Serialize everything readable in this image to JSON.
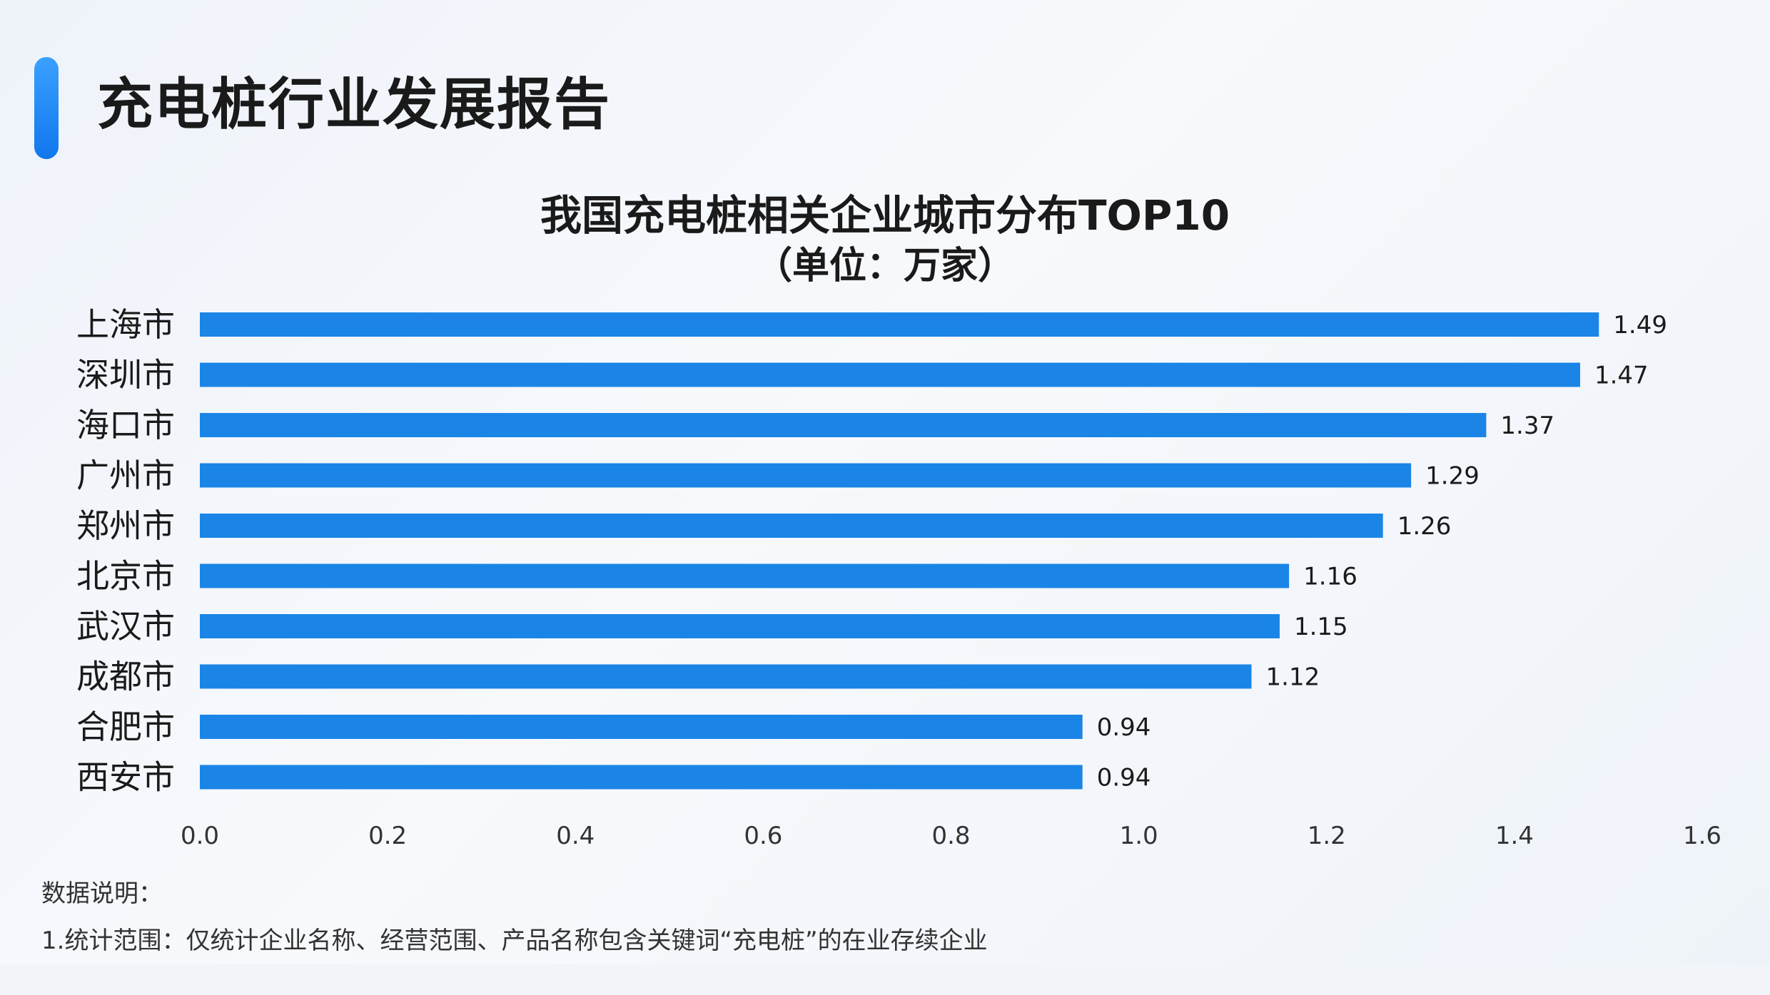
{
  "header": {
    "title": "充电桩行业发展报告"
  },
  "chart_data": {
    "type": "bar",
    "orientation": "horizontal",
    "title": "我国充电桩相关企业城市分布TOP10",
    "subtitle": "（单位：万家）",
    "categories": [
      "上海市",
      "深圳市",
      "海口市",
      "广州市",
      "郑州市",
      "北京市",
      "武汉市",
      "成都市",
      "合肥市",
      "西安市"
    ],
    "values": [
      1.49,
      1.47,
      1.37,
      1.29,
      1.26,
      1.16,
      1.15,
      1.12,
      0.94,
      0.94
    ],
    "data_labels": [
      "1.49",
      "1.47",
      "1.37",
      "1.29",
      "1.26",
      "1.16",
      "1.15",
      "1.12",
      "0.94",
      "0.94"
    ],
    "xlim": [
      0,
      1.6
    ],
    "xticks": [
      "0.0",
      "0.2",
      "0.4",
      "0.6",
      "0.8",
      "1.0",
      "1.2",
      "1.4",
      "1.6"
    ],
    "bar_color": "#1a85e6",
    "grid": false,
    "legend": "none"
  },
  "notes": {
    "heading": "数据说明：",
    "line1": "1.统计范围：仅统计企业名称、经营范围、产品名称包含关键词“充电桩”的在业存续企业"
  }
}
